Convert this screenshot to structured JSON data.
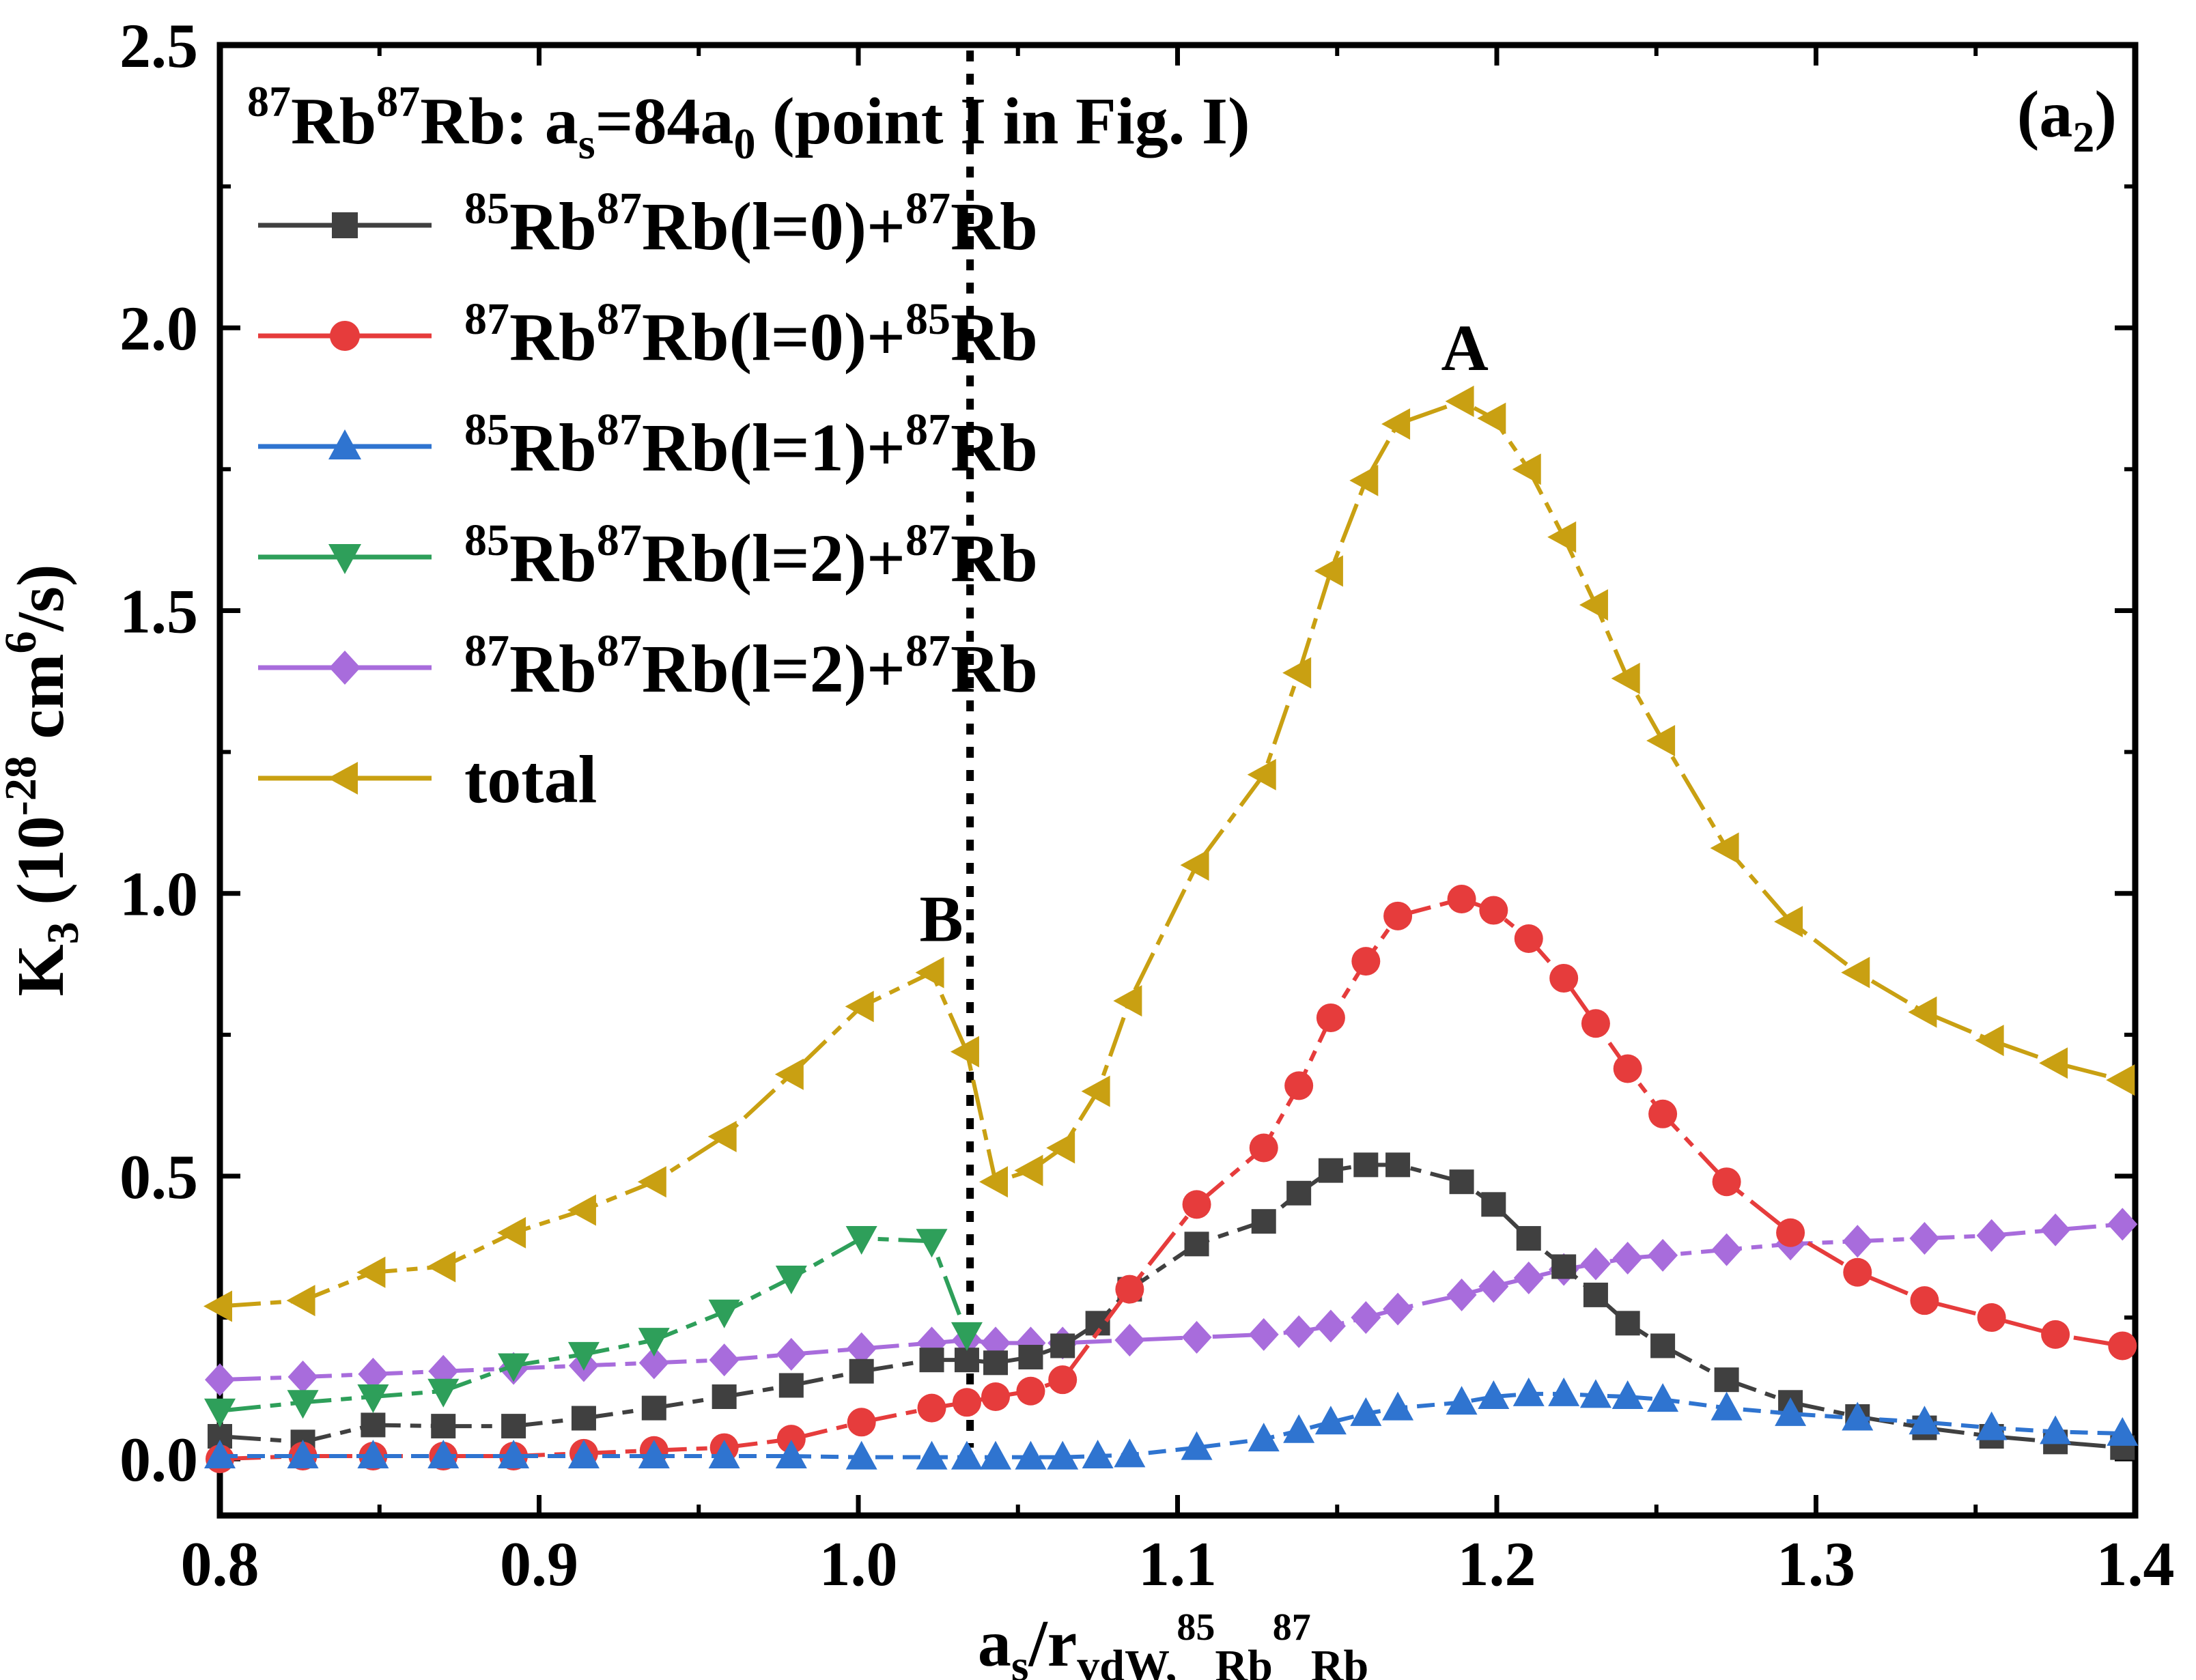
{
  "chart_data": {
    "type": "line",
    "title": "",
    "xlabel": "as/rvdW,85Rb87Rb",
    "ylabel": "K3 (10-28 cm6/s)",
    "xlim": [
      0.8,
      1.4
    ],
    "ylim": [
      -0.1,
      2.5
    ],
    "xticks": [
      "0.8",
      "0.9",
      "1.0",
      "1.1",
      "1.2",
      "1.3",
      "1.4"
    ],
    "yticks": [
      "0.0",
      "0.5",
      "1.0",
      "1.5",
      "2.0",
      "2.5"
    ],
    "panel_label": "(a2)",
    "header_text": "87Rb87Rb: as=84a0 (point I in Fig. I)",
    "vline_x": 1.035,
    "annotations": [
      {
        "text": "A",
        "x": 1.187,
        "y": 1.87
      },
      {
        "text": "B",
        "x": 1.023,
        "y": 0.86
      }
    ],
    "series": [
      {
        "name": "85Rb87Rb(l=0)+87Rb",
        "color": "#404040",
        "marker": "square",
        "dash": "long-short",
        "x": [
          0.8,
          0.826,
          0.848,
          0.87,
          0.892,
          0.914,
          0.936,
          0.958,
          0.979,
          1.001,
          1.023,
          1.034,
          1.043,
          1.054,
          1.064,
          1.075,
          1.085,
          1.106,
          1.127,
          1.138,
          1.148,
          1.159,
          1.169,
          1.189,
          1.199,
          1.21,
          1.221,
          1.231,
          1.241,
          1.252,
          1.272,
          1.292,
          1.313,
          1.334,
          1.355,
          1.375,
          1.396
        ],
        "values": [
          0.04,
          0.03,
          0.06,
          0.058,
          0.058,
          0.072,
          0.09,
          0.11,
          0.13,
          0.155,
          0.175,
          0.175,
          0.17,
          0.18,
          0.2,
          0.24,
          0.3,
          0.38,
          0.42,
          0.47,
          0.51,
          0.52,
          0.52,
          0.49,
          0.45,
          0.39,
          0.34,
          0.29,
          0.24,
          0.2,
          0.14,
          0.1,
          0.075,
          0.055,
          0.04,
          0.03,
          0.02
        ]
      },
      {
        "name": "87Rb87Rb(l=0)+85Rb",
        "color": "#e63c3c",
        "marker": "circle",
        "dash": "long-short",
        "x": [
          0.8,
          0.826,
          0.848,
          0.87,
          0.892,
          0.914,
          0.936,
          0.958,
          0.979,
          1.001,
          1.023,
          1.034,
          1.043,
          1.054,
          1.064,
          1.085,
          1.106,
          1.127,
          1.138,
          1.148,
          1.159,
          1.169,
          1.189,
          1.199,
          1.21,
          1.221,
          1.231,
          1.241,
          1.252,
          1.272,
          1.292,
          1.313,
          1.334,
          1.355,
          1.375,
          1.396
        ],
        "values": [
          0.0,
          0.005,
          0.005,
          0.005,
          0.005,
          0.01,
          0.015,
          0.02,
          0.035,
          0.065,
          0.09,
          0.1,
          0.11,
          0.12,
          0.14,
          0.3,
          0.45,
          0.55,
          0.66,
          0.78,
          0.88,
          0.96,
          0.99,
          0.97,
          0.92,
          0.85,
          0.77,
          0.69,
          0.61,
          0.49,
          0.4,
          0.33,
          0.28,
          0.25,
          0.22,
          0.2
        ]
      },
      {
        "name": "85Rb87Rb(l=1)+87Rb",
        "color": "#2f74d0",
        "marker": "triangle-up",
        "dash": "dash",
        "x": [
          0.8,
          0.826,
          0.848,
          0.87,
          0.892,
          0.914,
          0.936,
          0.958,
          0.979,
          1.001,
          1.023,
          1.034,
          1.043,
          1.054,
          1.064,
          1.075,
          1.085,
          1.106,
          1.127,
          1.138,
          1.148,
          1.159,
          1.169,
          1.189,
          1.199,
          1.21,
          1.221,
          1.231,
          1.241,
          1.252,
          1.272,
          1.292,
          1.313,
          1.334,
          1.355,
          1.375,
          1.396
        ],
        "values": [
          0.005,
          0.005,
          0.005,
          0.005,
          0.005,
          0.005,
          0.005,
          0.005,
          0.005,
          0.003,
          0.003,
          0.003,
          0.003,
          0.003,
          0.003,
          0.005,
          0.007,
          0.02,
          0.035,
          0.05,
          0.065,
          0.08,
          0.09,
          0.1,
          0.11,
          0.115,
          0.115,
          0.112,
          0.11,
          0.105,
          0.09,
          0.08,
          0.072,
          0.065,
          0.055,
          0.048,
          0.045
        ]
      },
      {
        "name": "85Rb87Rb(l=2)+87Rb",
        "color": "#2e9f5a",
        "marker": "triangle-down",
        "dash": "long-short",
        "x": [
          0.8,
          0.826,
          0.848,
          0.87,
          0.892,
          0.914,
          0.936,
          0.958,
          0.979,
          1.001,
          1.023,
          1.034
        ],
        "values": [
          0.085,
          0.1,
          0.11,
          0.12,
          0.165,
          0.185,
          0.21,
          0.26,
          0.32,
          0.39,
          0.385,
          0.22
        ]
      },
      {
        "name": "87Rb87Rb(l=2)+87Rb",
        "color": "#a86cdc",
        "marker": "diamond",
        "dash": "long-short",
        "x": [
          0.8,
          0.826,
          0.848,
          0.87,
          0.892,
          0.914,
          0.936,
          0.958,
          0.979,
          1.001,
          1.023,
          1.034,
          1.043,
          1.054,
          1.064,
          1.085,
          1.106,
          1.127,
          1.138,
          1.148,
          1.159,
          1.169,
          1.189,
          1.199,
          1.21,
          1.221,
          1.231,
          1.241,
          1.252,
          1.272,
          1.292,
          1.313,
          1.334,
          1.355,
          1.375,
          1.396
        ],
        "values": [
          0.14,
          0.145,
          0.15,
          0.155,
          0.16,
          0.165,
          0.17,
          0.175,
          0.185,
          0.195,
          0.205,
          0.21,
          0.205,
          0.205,
          0.205,
          0.21,
          0.215,
          0.22,
          0.225,
          0.235,
          0.25,
          0.265,
          0.29,
          0.305,
          0.32,
          0.335,
          0.345,
          0.355,
          0.36,
          0.37,
          0.38,
          0.385,
          0.39,
          0.395,
          0.405,
          0.415
        ]
      },
      {
        "name": "total",
        "color": "#c9a012",
        "marker": "triangle-left",
        "dash": "long-short",
        "x": [
          0.8,
          0.826,
          0.848,
          0.87,
          0.892,
          0.914,
          0.936,
          0.958,
          0.979,
          1.001,
          1.023,
          1.034,
          1.043,
          1.054,
          1.064,
          1.075,
          1.085,
          1.106,
          1.127,
          1.138,
          1.148,
          1.159,
          1.169,
          1.189,
          1.199,
          1.21,
          1.221,
          1.231,
          1.241,
          1.252,
          1.272,
          1.292,
          1.313,
          1.334,
          1.355,
          1.375,
          1.396
        ],
        "values": [
          0.27,
          0.28,
          0.33,
          0.34,
          0.4,
          0.44,
          0.49,
          0.57,
          0.68,
          0.8,
          0.86,
          0.72,
          0.49,
          0.51,
          0.55,
          0.65,
          0.81,
          1.05,
          1.21,
          1.39,
          1.57,
          1.73,
          1.83,
          1.87,
          1.84,
          1.75,
          1.63,
          1.51,
          1.38,
          1.27,
          1.08,
          0.95,
          0.86,
          0.79,
          0.74,
          0.7,
          0.67
        ]
      }
    ]
  }
}
